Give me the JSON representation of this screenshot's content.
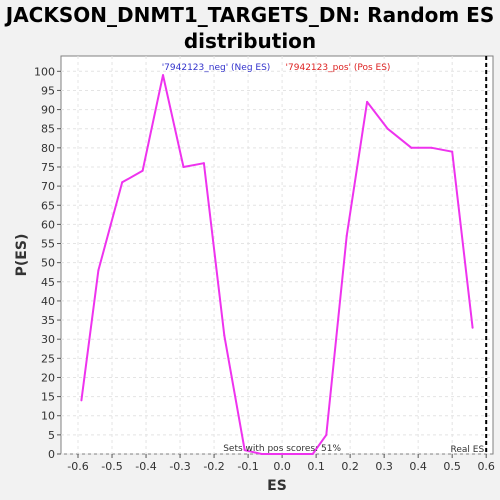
{
  "chart_data": {
    "type": "line",
    "title": "JACKSON_DNMT1_TARGETS_DN: Random ES distribution",
    "xlabel": "ES",
    "ylabel": "P(ES)",
    "xlim": [
      -0.65,
      0.62
    ],
    "ylim": [
      0,
      104
    ],
    "x_ticks": [
      -0.6,
      -0.5,
      -0.4,
      -0.3,
      -0.2,
      -0.1,
      0.0,
      0.1,
      0.2,
      0.3,
      0.4,
      0.5,
      0.6
    ],
    "x_tick_labels": [
      "-0.6",
      "-0.5",
      "-0.4",
      "-0.3",
      "-0.2",
      "-0.1",
      "0.0",
      "0.1",
      "0.2",
      "0.3",
      "0.4",
      "0.5",
      "0.6"
    ],
    "y_ticks": [
      0,
      5,
      10,
      15,
      20,
      25,
      30,
      35,
      40,
      45,
      50,
      55,
      60,
      65,
      70,
      75,
      80,
      85,
      90,
      95,
      100
    ],
    "y_tick_labels": [
      "0",
      "5",
      "10",
      "15",
      "20",
      "25",
      "30",
      "35",
      "40",
      "45",
      "50",
      "55",
      "60",
      "65",
      "70",
      "75",
      "80",
      "85",
      "90",
      "95",
      "100"
    ],
    "grid": true,
    "legend": [
      {
        "label": "'7942123_neg' (Neg ES)",
        "color": "#3333cc"
      },
      {
        "label": "'7942123_pos' (Pos ES)",
        "color": "#dd2222"
      }
    ],
    "series": [
      {
        "color": "#ee33ee",
        "x": [
          -0.59,
          -0.54,
          -0.47,
          -0.41,
          -0.35,
          -0.29,
          -0.23,
          -0.17,
          -0.11,
          -0.06,
          0.0,
          0.06,
          0.09
        ],
        "y": [
          14,
          48,
          71,
          74,
          99,
          75,
          76,
          31,
          1,
          0,
          0,
          0,
          0
        ]
      },
      {
        "color": "#ee33ee",
        "x": [
          0.09,
          0.13,
          0.19,
          0.25,
          0.31,
          0.38,
          0.44,
          0.5,
          0.56
        ],
        "y": [
          0,
          5,
          57,
          92,
          85,
          80,
          80,
          79,
          33
        ]
      }
    ],
    "real_es": {
      "x": 0.6,
      "label": "Real ES"
    },
    "annotation": "Sets with pos scores: 51%"
  }
}
